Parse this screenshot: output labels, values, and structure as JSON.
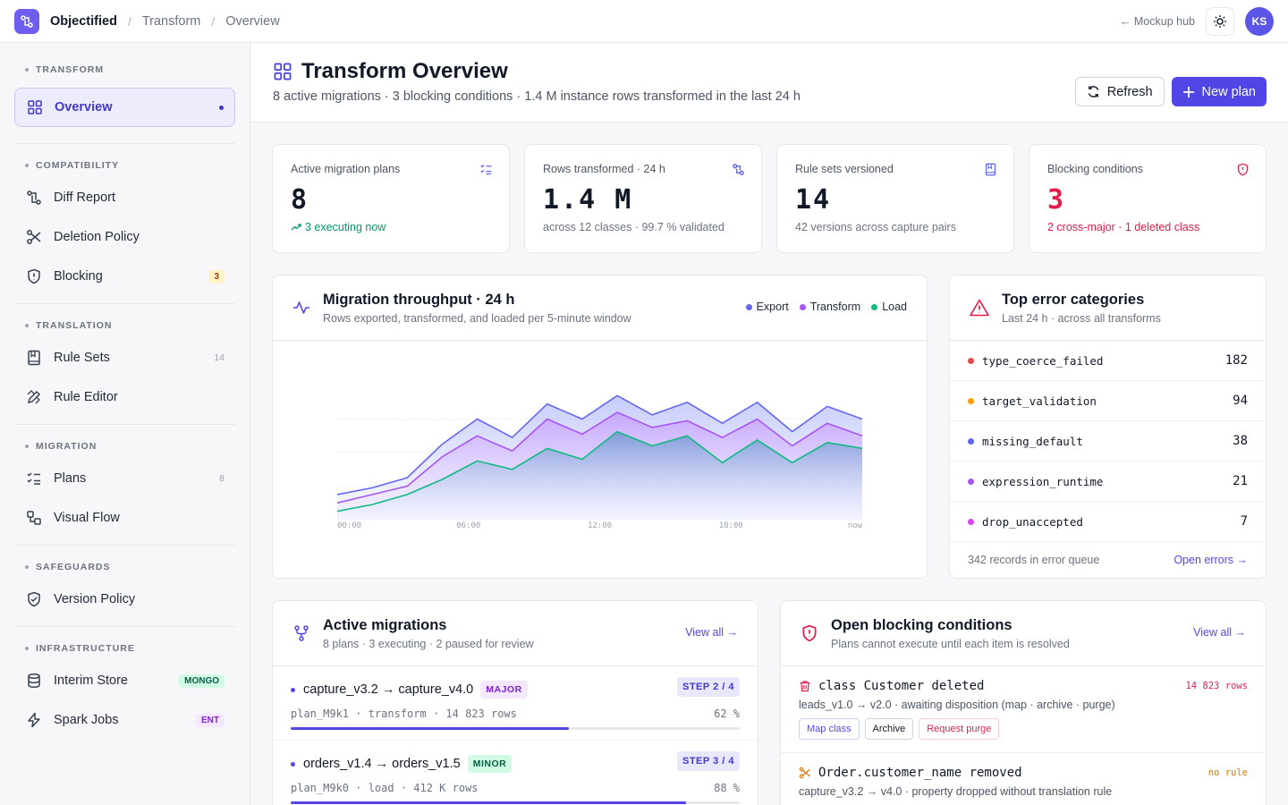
{
  "app": {
    "name": "Objectified"
  },
  "breadcrumb": {
    "level1": "Transform",
    "level2": "Overview"
  },
  "topbar": {
    "mockup_link": "← Mockup hub",
    "avatar_initials": "KS"
  },
  "sidebar": {
    "sections": [
      {
        "title": "TRANSFORM",
        "items": [
          {
            "label": "Overview",
            "icon": "grid-icon",
            "active": true
          }
        ]
      },
      {
        "title": "COMPATIBILITY",
        "items": [
          {
            "label": "Diff Report",
            "icon": "diff-icon"
          },
          {
            "label": "Deletion Policy",
            "icon": "scissors-icon"
          },
          {
            "label": "Blocking",
            "icon": "shield-alert-icon",
            "badge": "3"
          }
        ]
      },
      {
        "title": "TRANSLATION",
        "items": [
          {
            "label": "Rule Sets",
            "icon": "book-icon",
            "count": "14"
          },
          {
            "label": "Rule Editor",
            "icon": "pencil-ruler-icon"
          }
        ]
      },
      {
        "title": "MIGRATION",
        "items": [
          {
            "label": "Plans",
            "icon": "list-checks-icon",
            "count": "8"
          },
          {
            "label": "Visual Flow",
            "icon": "flow-icon"
          }
        ]
      },
      {
        "title": "SAFEGUARDS",
        "items": [
          {
            "label": "Version Policy",
            "icon": "shield-check-icon"
          }
        ]
      },
      {
        "title": "INFRASTRUCTURE",
        "items": [
          {
            "label": "Interim Store",
            "icon": "database-icon",
            "badge": "MONGO"
          },
          {
            "label": "Spark Jobs",
            "icon": "zap-icon",
            "badge": "ENT"
          }
        ]
      }
    ]
  },
  "header": {
    "title": "Transform Overview",
    "subtitle": "8 active migrations · 3 blocking conditions · 1.4 M instance rows transformed in the last 24 h",
    "refresh_label": "Refresh",
    "new_plan_label": "New plan"
  },
  "stats": [
    {
      "label": "Active migration plans",
      "value": "8",
      "sub": "3 executing now"
    },
    {
      "label": "Rows transformed · 24 h",
      "value": "1.4 M",
      "sub": "across 12 classes · 99.7 % validated"
    },
    {
      "label": "Rule sets versioned",
      "value": "14",
      "sub": "42 versions across capture pairs"
    },
    {
      "label": "Blocking conditions",
      "value": "3",
      "sub": "2 cross-major · 1 deleted class"
    }
  ],
  "throughput": {
    "title": "Migration throughput · 24 h",
    "subtitle": "Rows exported, transformed, and loaded per 5-minute window"
  },
  "chart_data": {
    "type": "area",
    "title": "Migration throughput · 24 h",
    "x_ticks": [
      "00:00",
      "06:00",
      "12:00",
      "18:00",
      "now"
    ],
    "x": [
      0,
      1,
      2,
      3,
      4,
      5,
      6,
      7,
      8,
      9,
      10,
      11,
      12,
      13,
      14,
      15
    ],
    "series": [
      {
        "name": "Export",
        "color": "#6366f1",
        "values": [
          30,
          38,
          50,
          90,
          120,
          98,
          138,
          120,
          148,
          125,
          140,
          115,
          140,
          105,
          135,
          120
        ]
      },
      {
        "name": "Transform",
        "color": "#a855f7",
        "values": [
          20,
          30,
          40,
          75,
          100,
          82,
          120,
          102,
          128,
          110,
          118,
          98,
          120,
          88,
          115,
          100
        ]
      },
      {
        "name": "Load",
        "color": "#10b981",
        "values": [
          10,
          18,
          30,
          48,
          70,
          60,
          85,
          72,
          105,
          88,
          100,
          68,
          95,
          68,
          92,
          85
        ]
      }
    ],
    "ylim": [
      0,
      160
    ],
    "grid": true
  },
  "errors": {
    "title": "Top error categories",
    "subtitle": "Last 24 h · across all transforms",
    "rows": [
      {
        "name": "type_coerce_failed",
        "count": "182",
        "color": "#e5484d"
      },
      {
        "name": "target_validation",
        "count": "94",
        "color": "#f59e0b"
      },
      {
        "name": "missing_default",
        "count": "38",
        "color": "#6366f1"
      },
      {
        "name": "expression_runtime",
        "count": "21",
        "color": "#a855f7"
      },
      {
        "name": "drop_unaccepted",
        "count": "7",
        "color": "#d946ef"
      }
    ],
    "footer_text": "342 records in error queue",
    "footer_link": "Open errors →"
  },
  "migrations": {
    "title": "Active migrations",
    "subtitle": "8 plans · 3 executing · 2 paused for review",
    "view_all": "View all →",
    "items": [
      {
        "title": "capture_v3.2 → capture_v4.0",
        "tag": "MAJOR",
        "step": "STEP 2 / 4",
        "meta": "plan_M9k1 · transform · 14 823 rows",
        "pct": "62 %",
        "progress": 0.62
      },
      {
        "title": "orders_v1.4 → orders_v1.5",
        "tag": "MINOR",
        "step": "STEP 3 / 4",
        "meta": "plan_M9k0 · load · 412 K rows",
        "pct": "88 %",
        "progress": 0.88
      }
    ]
  },
  "blocking": {
    "title": "Open blocking conditions",
    "subtitle": "Plans cannot execute until each item is resolved",
    "view_all": "View all →",
    "items": [
      {
        "title": "class Customer deleted",
        "right": "14 823 rows",
        "desc": "leads_v1.0 → v2.0 · awaiting disposition (map · archive · purge)",
        "actions": [
          "Map class",
          "Archive",
          "Request purge"
        ]
      },
      {
        "title": "Order.customer_name removed",
        "right": "no rule",
        "desc": "capture_v3.2 → v4.0 · property dropped without translation rule"
      }
    ]
  }
}
